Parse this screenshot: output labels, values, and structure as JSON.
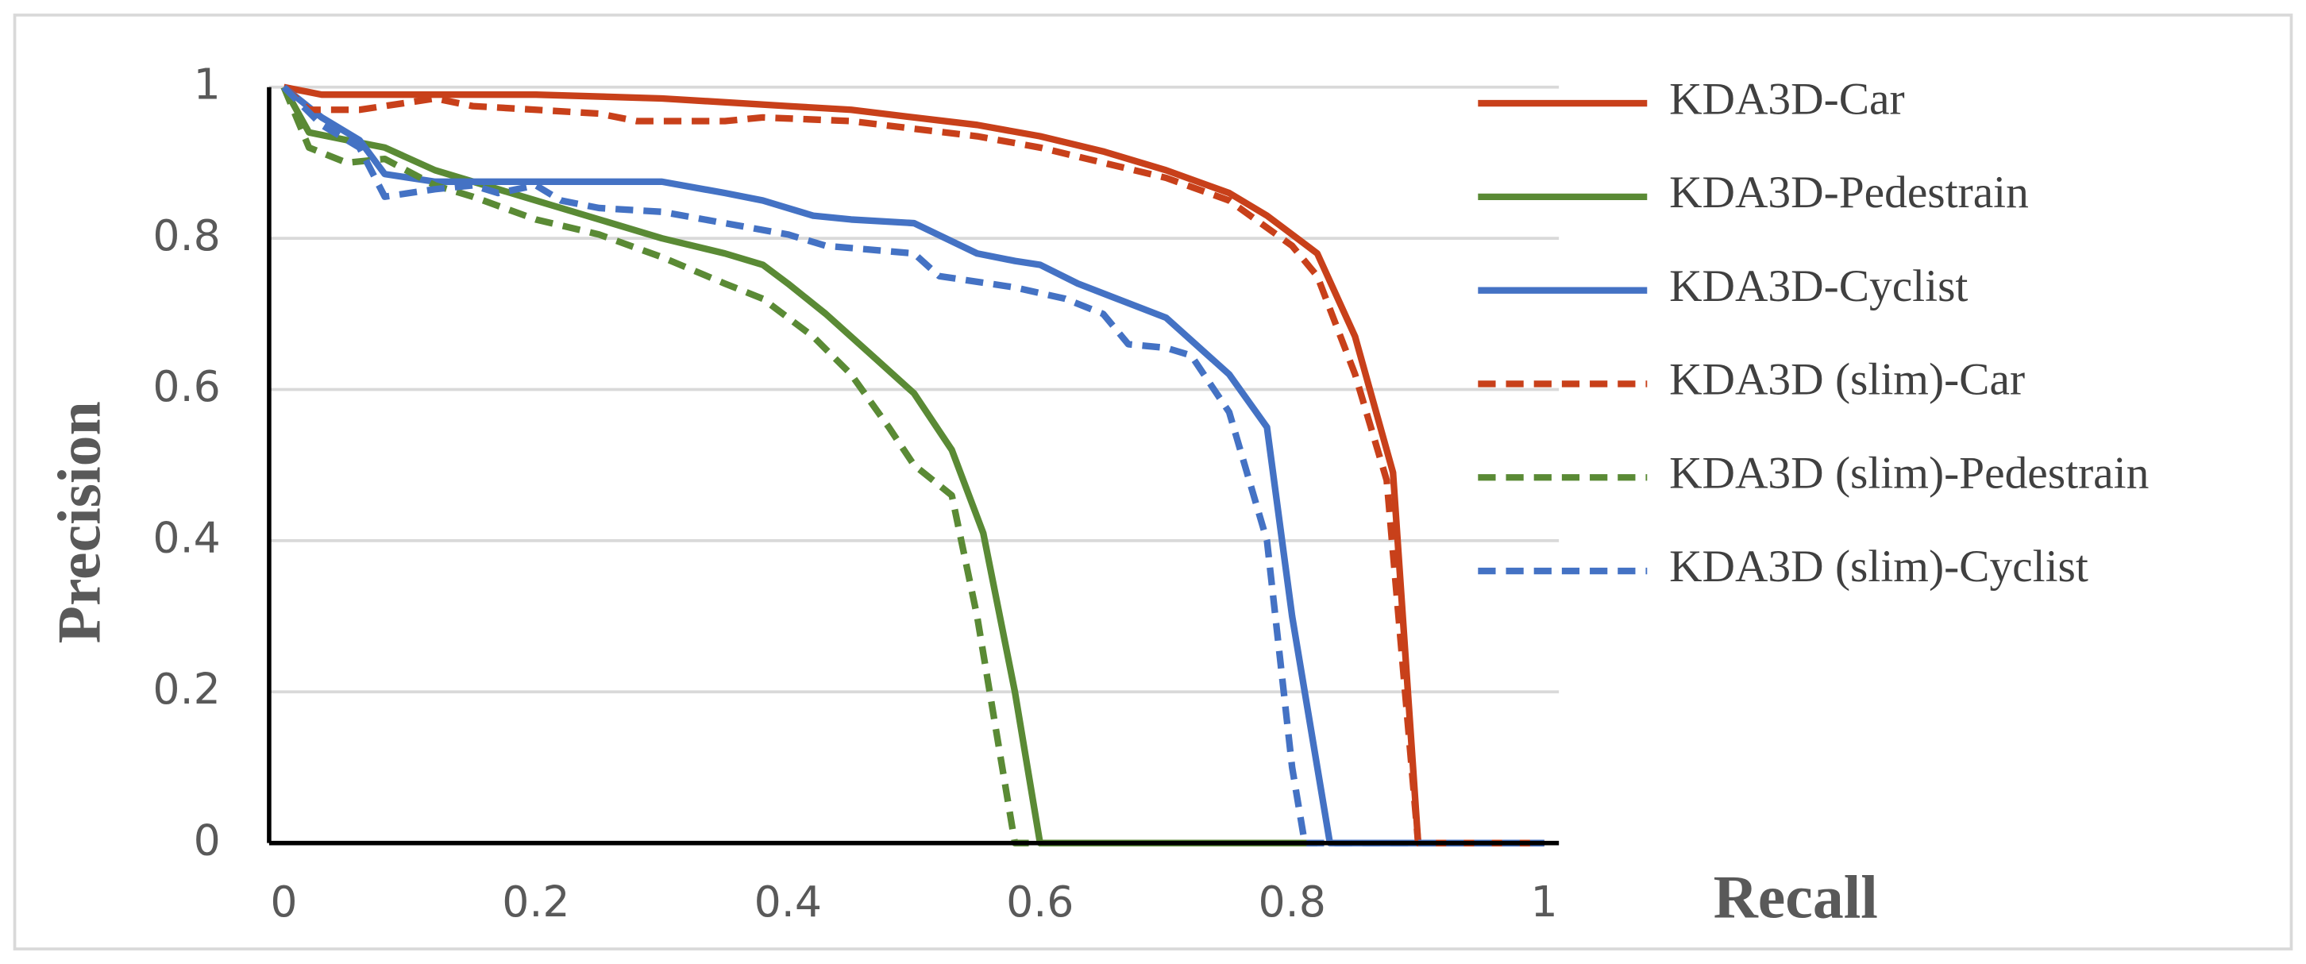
{
  "chart_data": {
    "type": "line",
    "xlabel": "Recall",
    "ylabel": "Precision",
    "xlim": [
      0,
      1
    ],
    "ylim": [
      0,
      1
    ],
    "xticks": [
      0,
      0.2,
      0.4,
      0.6,
      0.8,
      1
    ],
    "yticks": [
      0,
      0.2,
      0.4,
      0.6,
      0.8,
      1
    ],
    "grid": true,
    "legend": "right",
    "series": [
      {
        "name": "KDA3D-Car",
        "color": "#c8401a",
        "dashed": false,
        "x": [
          0,
          0.03,
          0.1,
          0.2,
          0.3,
          0.4,
          0.45,
          0.5,
          0.55,
          0.6,
          0.65,
          0.7,
          0.75,
          0.78,
          0.8,
          0.82,
          0.85,
          0.88,
          0.9,
          1
        ],
        "values": [
          1,
          0.99,
          0.99,
          0.99,
          0.985,
          0.975,
          0.97,
          0.96,
          0.95,
          0.935,
          0.915,
          0.89,
          0.86,
          0.83,
          0.805,
          0.78,
          0.67,
          0.49,
          0,
          0
        ]
      },
      {
        "name": "KDA3D-Pedestrain",
        "color": "#5a8a35",
        "dashed": false,
        "x": [
          0,
          0.02,
          0.05,
          0.08,
          0.12,
          0.2,
          0.3,
          0.35,
          0.38,
          0.4,
          0.43,
          0.47,
          0.5,
          0.53,
          0.555,
          0.58,
          0.6,
          0.82
        ],
        "values": [
          1,
          0.94,
          0.93,
          0.92,
          0.89,
          0.85,
          0.8,
          0.78,
          0.765,
          0.74,
          0.7,
          0.64,
          0.595,
          0.52,
          0.41,
          0.2,
          0,
          0
        ]
      },
      {
        "name": "KDA3D-Cyclist",
        "color": "#4472c4",
        "dashed": false,
        "x": [
          0,
          0.03,
          0.06,
          0.08,
          0.12,
          0.3,
          0.35,
          0.38,
          0.42,
          0.45,
          0.5,
          0.55,
          0.58,
          0.6,
          0.63,
          0.7,
          0.75,
          0.78,
          0.8,
          0.83,
          1
        ],
        "values": [
          1,
          0.96,
          0.93,
          0.885,
          0.875,
          0.875,
          0.86,
          0.85,
          0.83,
          0.825,
          0.82,
          0.78,
          0.77,
          0.765,
          0.74,
          0.695,
          0.62,
          0.55,
          0.3,
          0,
          0
        ]
      },
      {
        "name": "KDA3D (slim)-Car",
        "color": "#c8401a",
        "dashed": true,
        "x": [
          0,
          0.02,
          0.06,
          0.1,
          0.12,
          0.15,
          0.2,
          0.25,
          0.28,
          0.35,
          0.38,
          0.45,
          0.5,
          0.55,
          0.6,
          0.65,
          0.7,
          0.75,
          0.8,
          0.82,
          0.85,
          0.875,
          0.9,
          1
        ],
        "values": [
          1,
          0.97,
          0.97,
          0.98,
          0.985,
          0.975,
          0.97,
          0.965,
          0.955,
          0.955,
          0.96,
          0.955,
          0.945,
          0.935,
          0.92,
          0.9,
          0.88,
          0.85,
          0.79,
          0.75,
          0.62,
          0.48,
          0,
          0
        ]
      },
      {
        "name": "KDA3D (slim)-Pedestrain",
        "color": "#5a8a35",
        "dashed": true,
        "x": [
          0,
          0.02,
          0.05,
          0.08,
          0.12,
          0.15,
          0.2,
          0.25,
          0.3,
          0.35,
          0.38,
          0.42,
          0.45,
          0.48,
          0.5,
          0.53,
          0.55,
          0.57,
          0.58,
          0.6
        ],
        "values": [
          1,
          0.92,
          0.9,
          0.905,
          0.87,
          0.855,
          0.825,
          0.805,
          0.775,
          0.74,
          0.72,
          0.67,
          0.62,
          0.55,
          0.5,
          0.46,
          0.3,
          0.1,
          0,
          0
        ]
      },
      {
        "name": "KDA3D (slim)-Cyclist",
        "color": "#4472c4",
        "dashed": true,
        "x": [
          0,
          0.03,
          0.06,
          0.08,
          0.12,
          0.15,
          0.17,
          0.2,
          0.22,
          0.25,
          0.3,
          0.35,
          0.4,
          0.43,
          0.5,
          0.52,
          0.58,
          0.62,
          0.65,
          0.67,
          0.7,
          0.72,
          0.75,
          0.78,
          0.8,
          0.81,
          1
        ],
        "values": [
          1,
          0.95,
          0.92,
          0.855,
          0.865,
          0.87,
          0.86,
          0.87,
          0.85,
          0.84,
          0.835,
          0.82,
          0.805,
          0.79,
          0.78,
          0.75,
          0.735,
          0.72,
          0.7,
          0.66,
          0.655,
          0.645,
          0.57,
          0.4,
          0.1,
          0,
          0
        ]
      }
    ]
  }
}
